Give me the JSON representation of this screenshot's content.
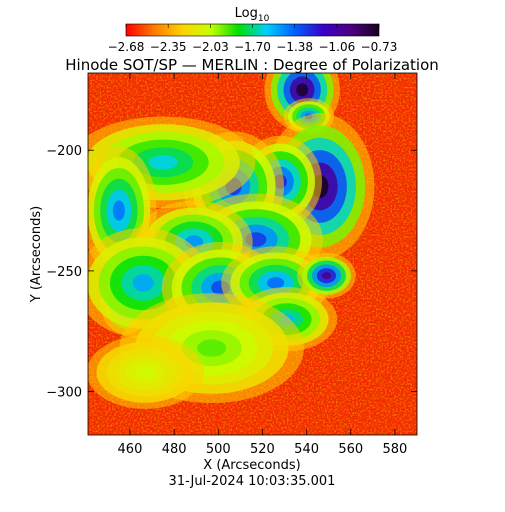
{
  "chart_data": {
    "type": "heatmap",
    "title": "Hinode SOT/SP — MERLIN : Degree of Polarization",
    "colorbar": {
      "label_main": "Log",
      "label_sub": "10",
      "ticks": [
        "−2.68",
        "−2.35",
        "−2.03",
        "−1.70",
        "−1.38",
        "−1.06",
        "−0.73"
      ],
      "range": [
        -2.68,
        -0.73
      ],
      "colors": [
        "#ff0000",
        "#ff7a00",
        "#ffd200",
        "#c8ff00",
        "#00e000",
        "#00d0ff",
        "#0060ff",
        "#3a00c8",
        "#4b0082",
        "#1a001f"
      ]
    },
    "xlabel": "X (Arcseconds)",
    "ylabel": "Y (Arcseconds)",
    "xlim": [
      441,
      590
    ],
    "ylim": [
      -318,
      -168
    ],
    "x_ticks": [
      460,
      480,
      500,
      520,
      540,
      560,
      580
    ],
    "x_tick_labels": [
      "460",
      "480",
      "500",
      "520",
      "540",
      "560",
      "580"
    ],
    "y_ticks": [
      -200,
      -250,
      -300
    ],
    "y_tick_labels": [
      "−200",
      "−250",
      "−300"
    ],
    "timestamp": "31-Jul-2024 10:03:35.001",
    "features": [
      {
        "x": 538,
        "y": -175,
        "rx": 9,
        "ry": 9,
        "level": 0.99
      },
      {
        "x": 541,
        "y": -186,
        "rx": 6,
        "ry": 4,
        "level": 0.7
      },
      {
        "x": 546,
        "y": -215,
        "rx": 13,
        "ry": 16,
        "level": 1.0
      },
      {
        "x": 528,
        "y": -213,
        "rx": 10,
        "ry": 10,
        "level": 0.75
      },
      {
        "x": 507,
        "y": -215,
        "rx": 12,
        "ry": 12,
        "level": 0.72
      },
      {
        "x": 475,
        "y": -205,
        "rx": 22,
        "ry": 10,
        "level": 0.55
      },
      {
        "x": 455,
        "y": -225,
        "rx": 9,
        "ry": 14,
        "level": 0.65
      },
      {
        "x": 517,
        "y": -237,
        "rx": 16,
        "ry": 10,
        "level": 0.72
      },
      {
        "x": 489,
        "y": -238,
        "rx": 14,
        "ry": 9,
        "level": 0.62
      },
      {
        "x": 458,
        "y": -263,
        "rx": 6,
        "ry": 7,
        "level": 0.98
      },
      {
        "x": 466,
        "y": -255,
        "rx": 16,
        "ry": 12,
        "level": 0.6
      },
      {
        "x": 501,
        "y": -257,
        "rx": 14,
        "ry": 10,
        "level": 0.7
      },
      {
        "x": 526,
        "y": -255,
        "rx": 13,
        "ry": 8,
        "level": 0.66
      },
      {
        "x": 549,
        "y": -252,
        "rx": 7,
        "ry": 5,
        "level": 0.88
      },
      {
        "x": 531,
        "y": -270,
        "rx": 12,
        "ry": 7,
        "level": 0.58
      },
      {
        "x": 497,
        "y": -282,
        "rx": 22,
        "ry": 12,
        "level": 0.4
      },
      {
        "x": 467,
        "y": -292,
        "rx": 14,
        "ry": 8,
        "level": 0.32
      }
    ]
  }
}
